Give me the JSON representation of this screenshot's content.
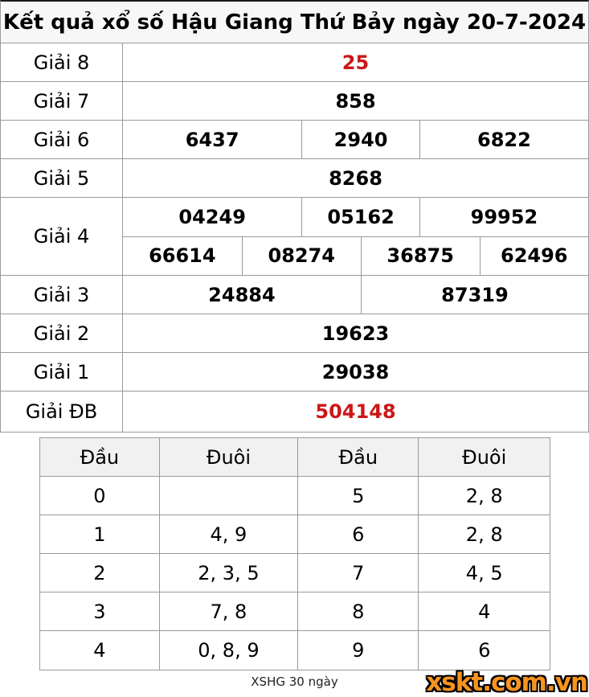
{
  "title": "Kết quả xổ số Hậu Giang Thứ Bảy ngày 20-7-2024",
  "prizes": {
    "g8": {
      "label": "Giải 8",
      "value": "25"
    },
    "g7": {
      "label": "Giải 7",
      "value": "858"
    },
    "g6": {
      "label": "Giải 6",
      "values": [
        "6437",
        "2940",
        "6822"
      ]
    },
    "g5": {
      "label": "Giải 5",
      "value": "8268"
    },
    "g4": {
      "label": "Giải 4",
      "row1": [
        "04249",
        "05162",
        "99952"
      ],
      "row2": [
        "66614",
        "08274",
        "36875",
        "62496"
      ]
    },
    "g3": {
      "label": "Giải 3",
      "values": [
        "24884",
        "87319"
      ]
    },
    "g2": {
      "label": "Giải 2",
      "value": "19623"
    },
    "g1": {
      "label": "Giải 1",
      "value": "29038"
    },
    "gdb": {
      "label": "Giải ĐB",
      "value": "504148"
    }
  },
  "head_tail_table": {
    "headers": [
      "Đầu",
      "Đuôi",
      "Đầu",
      "Đuôi"
    ],
    "rows": [
      {
        "head_left": "0",
        "tail_left": "",
        "head_right": "5",
        "tail_right": "2, 8"
      },
      {
        "head_left": "1",
        "tail_left": "4, 9",
        "head_right": "6",
        "tail_right": "2, 8"
      },
      {
        "head_left": "2",
        "tail_left": "2, 3, 5",
        "head_right": "7",
        "tail_right": "4, 5"
      },
      {
        "head_left": "3",
        "tail_left": "7, 8",
        "head_right": "8",
        "tail_right": "4"
      },
      {
        "head_left": "4",
        "tail_left": "0, 8, 9",
        "head_right": "9",
        "tail_right": "6"
      }
    ]
  },
  "footer": {
    "caption": "XSHG 30 ngày",
    "logo_text": "xskt.com.vn"
  },
  "colors": {
    "accent_red": "#cb1717",
    "logo_orange": "#f7941e"
  }
}
